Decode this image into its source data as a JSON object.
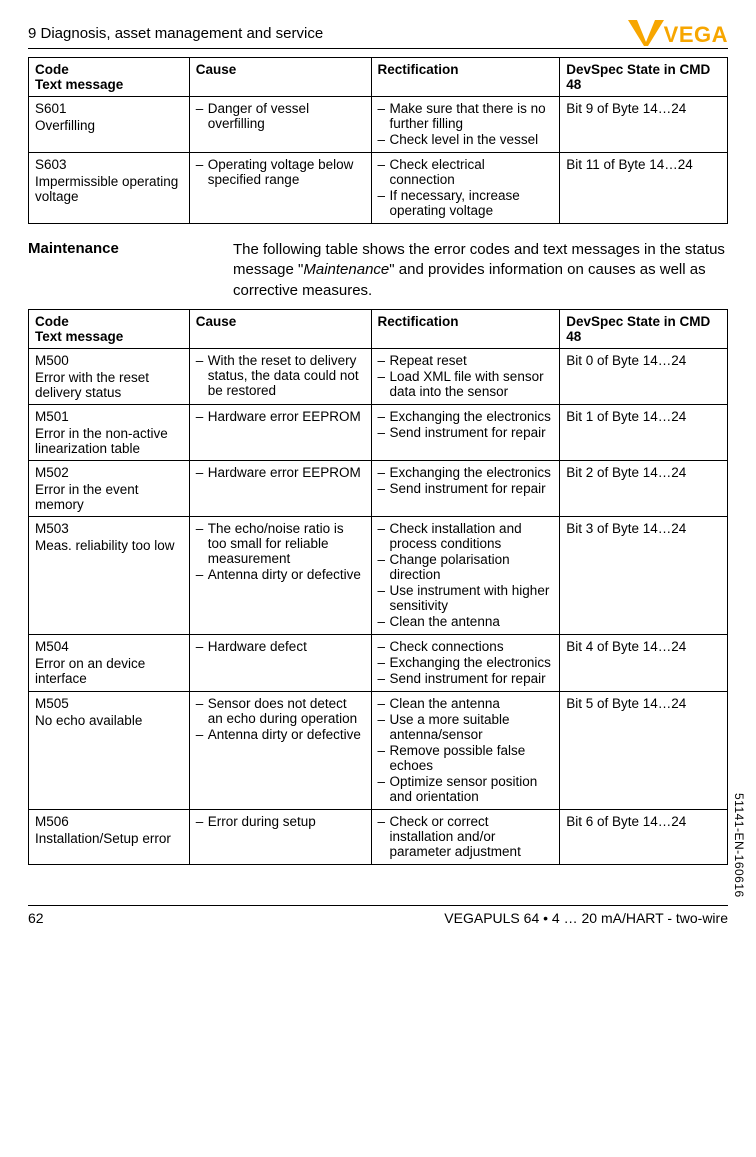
{
  "header": {
    "section": "9 Diagnosis, asset management and service",
    "logo_text": "VEGA",
    "logo_color": "#f7a600"
  },
  "table1": {
    "columns": {
      "code_l1": "Code",
      "code_l2": "Text message",
      "cause": "Cause",
      "rect": "Rectification",
      "dev_l1": "DevSpec State in CMD",
      "dev_l2": "48"
    },
    "rows": [
      {
        "code_id": "S601",
        "code_text": "Overfilling",
        "cause": [
          "Danger of vessel overfilling"
        ],
        "rect": [
          "Make sure that there is no further filling",
          "Check level in the vessel"
        ],
        "dev": "Bit 9 of Byte 14…24"
      },
      {
        "code_id": "S603",
        "code_text": "Impermissible operating voltage",
        "cause": [
          "Operating voltage below specified range"
        ],
        "rect": [
          "Check electrical connection",
          "If necessary, increase operating voltage"
        ],
        "dev": "Bit 11 of Byte 14…24"
      }
    ]
  },
  "maintenance": {
    "label": "Maintenance",
    "text_pre": "The following table shows the error codes and text messages in the status message \"",
    "text_italic": "Maintenance",
    "text_post": "\" and provides information on causes as well as corrective measures."
  },
  "table2": {
    "columns": {
      "code_l1": "Code",
      "code_l2": "Text message",
      "cause": "Cause",
      "rect": "Rectification",
      "dev_l1": "DevSpec State in CMD",
      "dev_l2": "48"
    },
    "rows": [
      {
        "code_id": "M500",
        "code_text": "Error with the reset delivery status",
        "cause": [
          "With the reset to delivery status, the data could not be restored"
        ],
        "rect": [
          "Repeat reset",
          "Load XML file with sensor data into the sensor"
        ],
        "dev": "Bit 0 of Byte 14…24"
      },
      {
        "code_id": "M501",
        "code_text": "Error in the non-active linearization table",
        "cause": [
          "Hardware error EEPROM"
        ],
        "rect": [
          "Exchanging the electronics",
          "Send instrument for repair"
        ],
        "dev": "Bit 1 of Byte 14…24"
      },
      {
        "code_id": "M502",
        "code_text": "Error in the event memory",
        "cause": [
          "Hardware error EEPROM"
        ],
        "rect": [
          "Exchanging the electronics",
          "Send instrument for repair"
        ],
        "dev": "Bit 2 of Byte 14…24"
      },
      {
        "code_id": "M503",
        "code_text": "Meas. reliability too low",
        "cause": [
          "The echo/noise ratio is too small for reliable measurement",
          "Antenna dirty or defective"
        ],
        "rect": [
          "Check installation and process conditions",
          "Change polarisation direction",
          "Use instrument with higher sensitivity",
          "Clean the antenna"
        ],
        "dev": "Bit 3 of Byte 14…24"
      },
      {
        "code_id": "M504",
        "code_text": "Error on an device interface",
        "cause": [
          "Hardware defect"
        ],
        "rect": [
          "Check connections",
          "Exchanging the electronics",
          "Send instrument for repair"
        ],
        "dev": "Bit 4 of Byte 14…24"
      },
      {
        "code_id": "M505",
        "code_text": "No echo available",
        "cause": [
          "Sensor does not detect an echo during operation",
          "Antenna dirty or defective"
        ],
        "rect": [
          "Clean the antenna",
          "Use a more suitable antenna/sensor",
          "Remove possible false echoes",
          "Optimize sensor position and orientation"
        ],
        "dev": "Bit 5 of Byte 14…24"
      },
      {
        "code_id": "M506",
        "code_text": "Installation/Setup error",
        "cause": [
          "Error during setup"
        ],
        "rect": [
          "Check or correct installation and/or parameter adjustment"
        ],
        "dev": "Bit 6 of Byte 14…24"
      }
    ]
  },
  "side_code": "51141-EN-160616",
  "footer": {
    "page": "62",
    "right": "VEGAPULS 64 • 4 … 20 mA/HART - two-wire"
  }
}
